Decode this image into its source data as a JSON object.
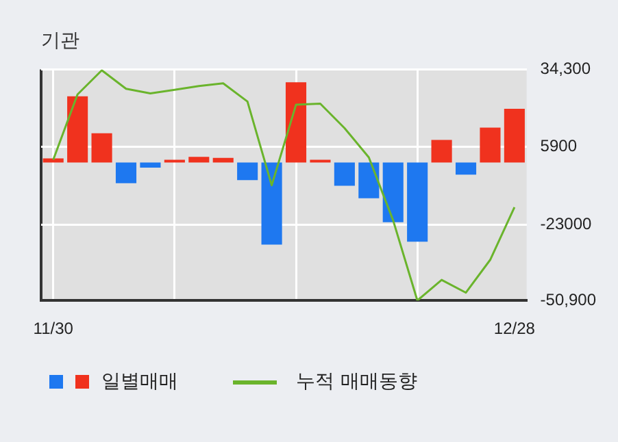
{
  "chart_data": {
    "type": "bar",
    "title": "기관",
    "categories": [
      "11/30",
      null,
      null,
      null,
      null,
      null,
      null,
      null,
      null,
      null,
      null,
      null,
      null,
      null,
      null,
      null,
      null,
      null,
      null,
      "12/28"
    ],
    "series": [
      {
        "name": "일별매매",
        "colors": [
          "#f0321e",
          "#f0321e",
          "#f0321e",
          "#1e78f0",
          "#1e78f0",
          "#f0321e",
          "#f0321e",
          "#f0321e",
          "#1e78f0",
          "#1e78f0",
          "#f0321e",
          "#f0321e",
          "#1e78f0",
          "#1e78f0",
          "#1e78f0",
          "#1e78f0",
          "#f0321e",
          "#1e78f0",
          "#f0321e",
          "#f0321e"
        ],
        "values": [
          1500,
          24400,
          10800,
          -7600,
          -1900,
          1000,
          2100,
          1700,
          -6500,
          -30300,
          29600,
          1000,
          -8600,
          -13200,
          -22000,
          -29200,
          8300,
          -4500,
          12900,
          19800
        ]
      },
      {
        "name": "누적 매매동향",
        "type": "line",
        "color": "#6ab42c",
        "values": [
          1000,
          25100,
          34000,
          27200,
          25500,
          26800,
          28200,
          29200,
          22500,
          -8400,
          21300,
          21700,
          12700,
          1900,
          -21300,
          -50900,
          -43300,
          -48000,
          -35900,
          -16500
        ]
      }
    ],
    "ylim": [
      -50900,
      34300
    ],
    "yticks": [
      {
        "value": 34300,
        "label": "34,300"
      },
      5900,
      -23000,
      {
        "value": -50900,
        "label": "-50,900"
      }
    ],
    "grid": true,
    "legend": "bottom",
    "marker": "none"
  }
}
